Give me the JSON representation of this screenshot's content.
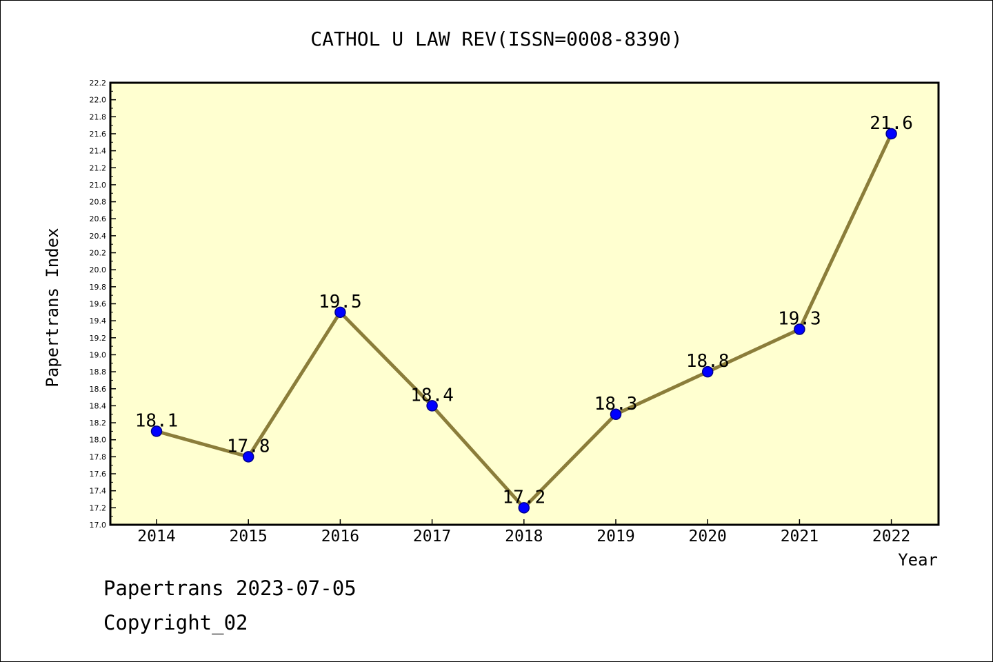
{
  "chart_data": {
    "type": "line",
    "title": "CATHOL U LAW REV(ISSN=0008-8390)",
    "xlabel": "Year",
    "ylabel": "Papertrans Index",
    "categories": [
      "2014",
      "2015",
      "2016",
      "2017",
      "2018",
      "2019",
      "2020",
      "2021",
      "2022"
    ],
    "values": [
      18.1,
      17.8,
      19.5,
      18.4,
      17.2,
      18.3,
      18.8,
      19.3,
      21.6
    ],
    "data_labels": [
      "18.1",
      "17.8",
      "19.5",
      "18.4",
      "17.2",
      "18.3",
      "18.8",
      "19.3",
      "21.6"
    ],
    "ylim": [
      17.0,
      22.2
    ],
    "ytick_step": 0.2,
    "grid": false,
    "legend": "none",
    "colors": {
      "plot_background": "#ffffd0",
      "line": "#8b7d3a",
      "marker_fill": "#0000ff",
      "marker_edge": "#00008b",
      "axis": "#000000"
    }
  },
  "footer": {
    "line1": "Papertrans 2023-07-05",
    "line2": "Copyright_02"
  }
}
